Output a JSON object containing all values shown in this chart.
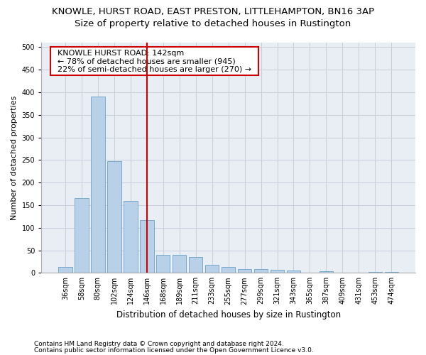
{
  "title": "KNOWLE, HURST ROAD, EAST PRESTON, LITTLEHAMPTON, BN16 3AP",
  "subtitle": "Size of property relative to detached houses in Rustington",
  "xlabel": "Distribution of detached houses by size in Rustington",
  "ylabel": "Number of detached properties",
  "categories": [
    "36sqm",
    "58sqm",
    "80sqm",
    "102sqm",
    "124sqm",
    "146sqm",
    "168sqm",
    "189sqm",
    "211sqm",
    "233sqm",
    "255sqm",
    "277sqm",
    "299sqm",
    "321sqm",
    "343sqm",
    "365sqm",
    "387sqm",
    "409sqm",
    "431sqm",
    "453sqm",
    "474sqm"
  ],
  "values": [
    13,
    165,
    390,
    248,
    160,
    117,
    40,
    40,
    35,
    17,
    13,
    8,
    8,
    6,
    5,
    0,
    4,
    0,
    0,
    2,
    2
  ],
  "bar_color": "#b8d0e8",
  "bar_edge_color": "#6aa0c8",
  "vline_x": 5,
  "vline_color": "#cc0000",
  "annotation_text": "  KNOWLE HURST ROAD: 142sqm  \n  ← 78% of detached houses are smaller (945)  \n  22% of semi-detached houses are larger (270) →  ",
  "annotation_box_color": "#ffffff",
  "annotation_box_edge_color": "#cc0000",
  "ylim": [
    0,
    510
  ],
  "yticks": [
    0,
    50,
    100,
    150,
    200,
    250,
    300,
    350,
    400,
    450,
    500
  ],
  "footer_line1": "Contains HM Land Registry data © Crown copyright and database right 2024.",
  "footer_line2": "Contains public sector information licensed under the Open Government Licence v3.0.",
  "title_fontsize": 9.5,
  "subtitle_fontsize": 9.5,
  "xlabel_fontsize": 8.5,
  "ylabel_fontsize": 8,
  "tick_fontsize": 7,
  "annotation_fontsize": 8,
  "footer_fontsize": 6.5,
  "background_color": "#ffffff",
  "plot_background_color": "#e8eef4",
  "grid_color": "#c5d0dc"
}
